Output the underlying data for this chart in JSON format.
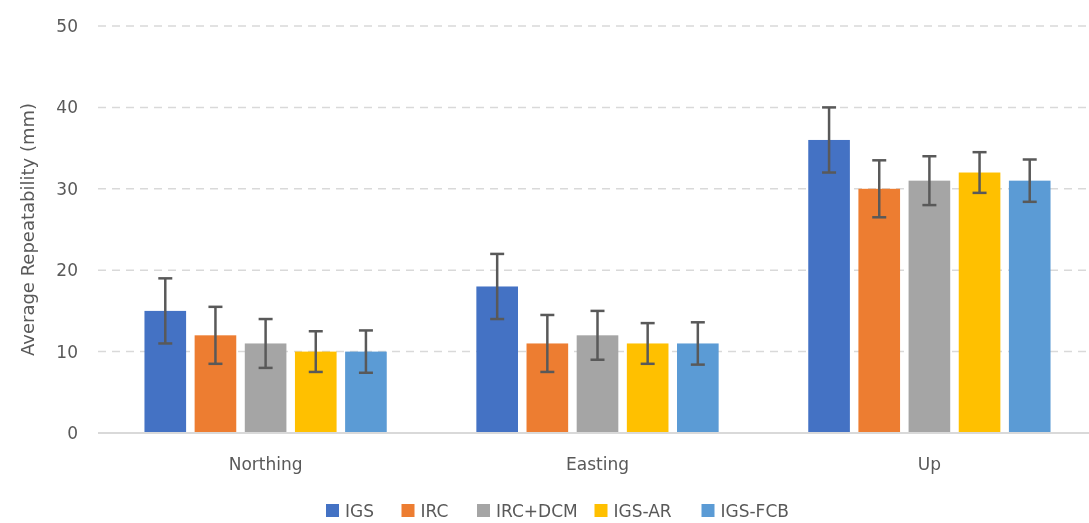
{
  "chart_data": {
    "type": "bar",
    "ylabel": "Average Repeatability (mm)",
    "categories": [
      "Northing",
      "Easting",
      "Up"
    ],
    "series": [
      {
        "name": "IGS",
        "color": "#4472c4",
        "values": [
          15,
          18,
          36
        ],
        "errors": [
          4,
          4,
          4
        ]
      },
      {
        "name": "IRC",
        "color": "#ed7d31",
        "values": [
          12,
          11,
          30
        ],
        "errors": [
          3.5,
          3.5,
          3.5
        ]
      },
      {
        "name": "IRC+DCM",
        "color": "#a5a5a5",
        "values": [
          11,
          12,
          31
        ],
        "errors": [
          3,
          3,
          3
        ]
      },
      {
        "name": "IGS-AR",
        "color": "#ffc000",
        "values": [
          10,
          11,
          32
        ],
        "errors": [
          2.5,
          2.5,
          2.5
        ]
      },
      {
        "name": "IGS-FCB",
        "color": "#5b9bd5",
        "values": [
          10,
          11,
          31
        ],
        "errors": [
          2.6,
          2.6,
          2.6
        ]
      }
    ],
    "ylim": [
      0,
      50
    ],
    "yticks": [
      0,
      10,
      20,
      30,
      40,
      50
    ],
    "grid": "y",
    "legend": "bottom"
  }
}
